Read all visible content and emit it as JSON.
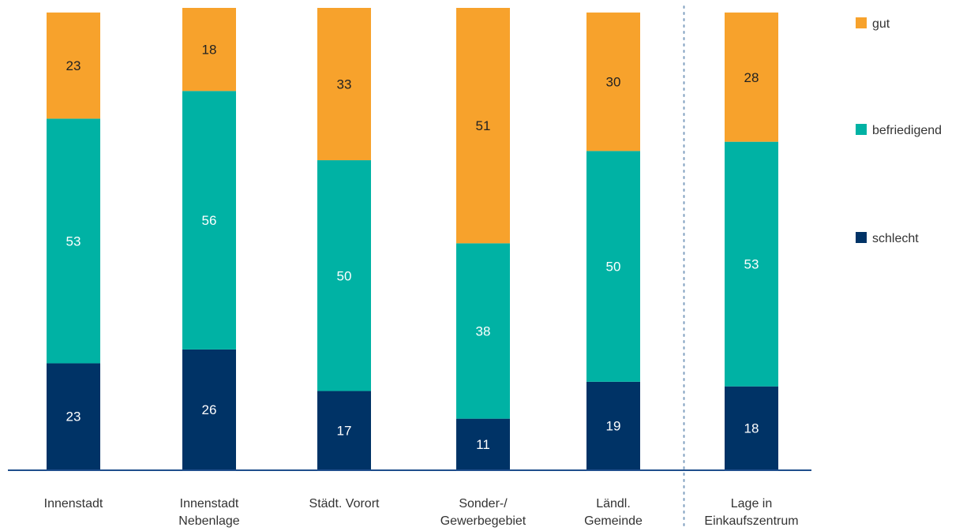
{
  "chart_data": {
    "type": "bar",
    "stacked": true,
    "categories": [
      [
        "Innenstadt"
      ],
      [
        "Innenstadt",
        "Nebenlage"
      ],
      [
        "Städt. Vorort"
      ],
      [
        "Sonder-/",
        "Gewerbegebiet"
      ],
      [
        "Ländl.",
        "Gemeinde"
      ],
      [
        "Lage in",
        "Einkaufszentrum"
      ]
    ],
    "series": [
      {
        "name": "schlecht",
        "color": "#003366",
        "label_color": "#ffffff",
        "values": [
          23,
          26,
          17,
          11,
          19,
          18
        ]
      },
      {
        "name": "befriedigend",
        "color": "#00b2a4",
        "label_color": "#ffffff",
        "values": [
          53,
          56,
          50,
          38,
          50,
          53
        ]
      },
      {
        "name": "gut",
        "color": "#f7a22c",
        "label_color": "#222222",
        "values": [
          23,
          18,
          33,
          51,
          30,
          28
        ]
      }
    ],
    "legend_order": [
      "gut",
      "befriedigend",
      "schlecht"
    ],
    "legend_position": "right",
    "separator_before_category": 5,
    "ylim": [
      0,
      100
    ],
    "grid": false,
    "axis_color": "#1f4e8c",
    "separator_color": "#7f9fbf"
  }
}
